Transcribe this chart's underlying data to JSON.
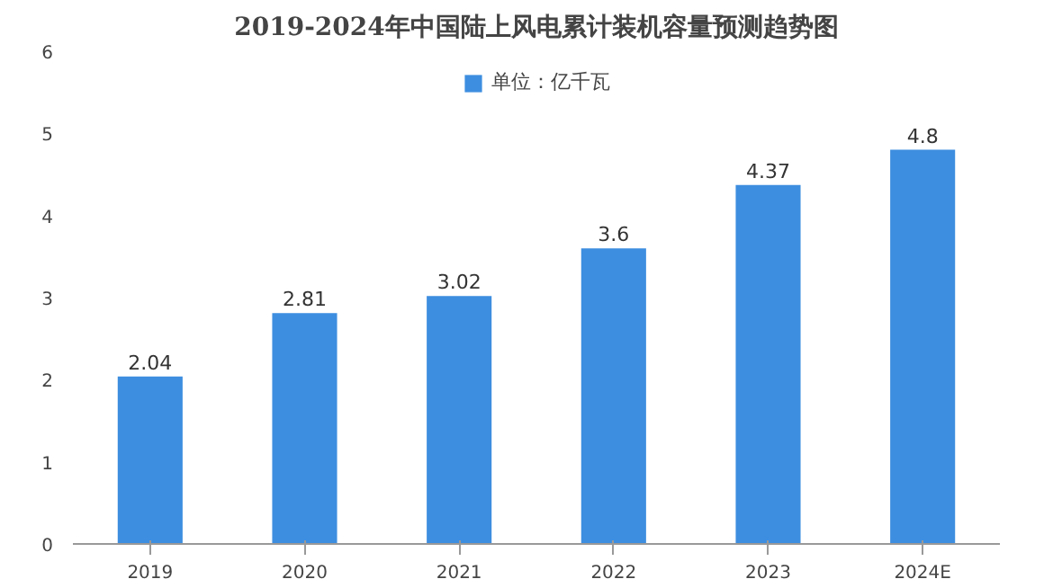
{
  "chart_data": {
    "type": "bar",
    "title": "2019-2024年中国陆上风电累计装机容量预测趋势图",
    "categories": [
      "2019",
      "2020",
      "2021",
      "2022",
      "2023",
      "2024E"
    ],
    "series": [
      {
        "name": "单位：亿千瓦",
        "color": "#3d8ee0",
        "values": [
          2.04,
          2.81,
          3.02,
          3.6,
          4.37,
          4.8
        ]
      }
    ],
    "ylim": [
      0,
      6
    ],
    "yticks": [
      0,
      1,
      2,
      3,
      4,
      5,
      6
    ],
    "grid": false,
    "legend": "top",
    "data_labels": true
  }
}
